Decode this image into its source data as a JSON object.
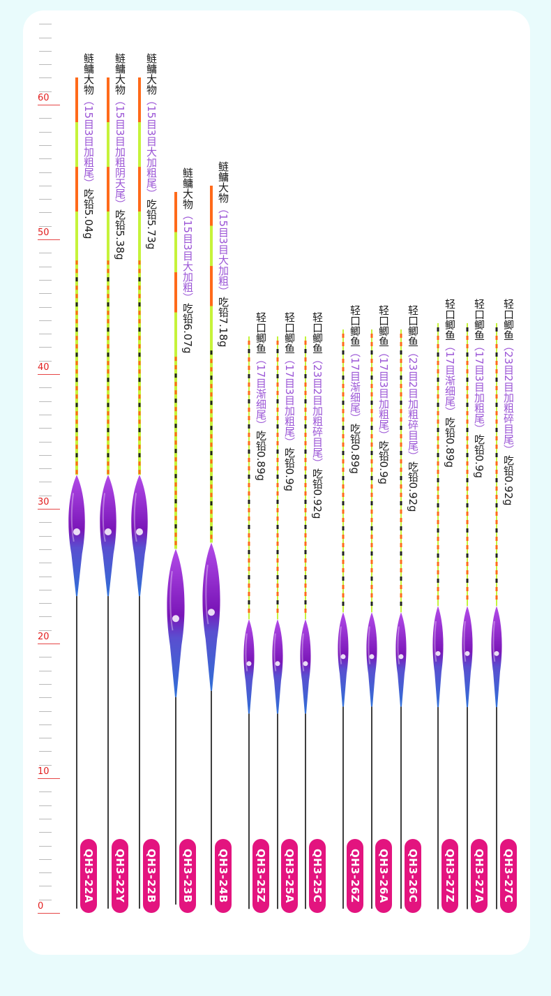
{
  "colors": {
    "background": "#e9fbfc",
    "card": "#ffffff",
    "ruler_label": "#e11d1d",
    "badge": "#e3147f",
    "spec_text": "#9b55d6",
    "tip_orange": "#ff6a1a",
    "tip_green": "#c6f33a",
    "body_purple": "#7a16b8",
    "body_blue": "#2f6fd6",
    "stem": "#2a2a2a"
  },
  "ruler": {
    "labels": [
      "0",
      "10",
      "20",
      "30",
      "40",
      "50",
      "60"
    ],
    "max": 66
  },
  "floats": [
    {
      "code": "QH3-22A",
      "name": "鲢鳙大物",
      "spec": "（15目3目加粗尾）",
      "weight": "吃铅5.04g",
      "top": 62,
      "body_top": 32.5,
      "body_bottom": 23.5,
      "stem_bottom": 0.3,
      "size": "large"
    },
    {
      "code": "QH3-22Y",
      "name": "鲢鳙大物",
      "spec": "（15目3目加粗阴天尾）",
      "weight": "吃铅5.38g",
      "top": 62,
      "body_top": 32.5,
      "body_bottom": 23.5,
      "stem_bottom": 0.3,
      "size": "large"
    },
    {
      "code": "QH3-22B",
      "name": "鲢鳙大物",
      "spec": "（15目3目大加粗尾）",
      "weight": "吃铅5.73g",
      "top": 62,
      "body_top": 32.5,
      "body_bottom": 23.5,
      "stem_bottom": 0.3,
      "size": "large"
    },
    {
      "code": "QH3-23B",
      "name": "鲢鳙大物",
      "spec": "（15目3目大加粗）",
      "weight": "吃铅6.07g",
      "top": 53.5,
      "body_top": 27,
      "body_bottom": 16,
      "stem_bottom": 0.6,
      "size": "xlarge"
    },
    {
      "code": "QH3-24B",
      "name": "鲢鳙大物",
      "spec": "（15目3目大加粗）",
      "weight": "吃铅7.18g",
      "top": 54,
      "body_top": 27.5,
      "body_bottom": 16.5,
      "stem_bottom": 0.6,
      "size": "xlarge"
    },
    {
      "code": "QH3-25Z",
      "name": "轻口鲫鱼",
      "spec": "（17目渐细尾）",
      "weight": "吃铅0.89g",
      "top": 42.8,
      "body_top": 21.8,
      "body_bottom": 14.8,
      "stem_bottom": 0.3,
      "size": "small"
    },
    {
      "code": "QH3-25A",
      "name": "轻口鲫鱼",
      "spec": "（17目3目加粗尾）",
      "weight": "吃铅0.9g",
      "top": 42.8,
      "body_top": 21.8,
      "body_bottom": 14.8,
      "stem_bottom": 0.3,
      "size": "small"
    },
    {
      "code": "QH3-25C",
      "name": "轻口鲫鱼",
      "spec": "（23目2目加粗碎目尾）",
      "weight": "吃铅0.92g",
      "top": 42.8,
      "body_top": 21.8,
      "body_bottom": 14.8,
      "stem_bottom": 0.3,
      "size": "small"
    },
    {
      "code": "QH3-26Z",
      "name": "轻口鲫鱼",
      "spec": "（17目渐细尾）",
      "weight": "吃铅0.89g",
      "top": 43.3,
      "body_top": 22.3,
      "body_bottom": 15.3,
      "stem_bottom": 0.3,
      "size": "small"
    },
    {
      "code": "QH3-26A",
      "name": "轻口鲫鱼",
      "spec": "（17目3目加粗尾）",
      "weight": "吃铅0.9g",
      "top": 43.3,
      "body_top": 22.3,
      "body_bottom": 15.3,
      "stem_bottom": 0.3,
      "size": "small"
    },
    {
      "code": "QH3-26C",
      "name": "轻口鲫鱼",
      "spec": "（23目2目加粗碎目尾）",
      "weight": "吃铅0.92g",
      "top": 43.3,
      "body_top": 22.3,
      "body_bottom": 15.3,
      "stem_bottom": 0.3,
      "size": "small"
    },
    {
      "code": "QH3-27Z",
      "name": "轻口鲫鱼",
      "spec": "（17目渐细尾）",
      "weight": "吃铅0.89g",
      "top": 43.8,
      "body_top": 22.8,
      "body_bottom": 15.3,
      "stem_bottom": 0.3,
      "size": "small"
    },
    {
      "code": "QH3-27A",
      "name": "轻口鲫鱼",
      "spec": "（17目3目加粗尾）",
      "weight": "吃铅0.9g",
      "top": 43.8,
      "body_top": 22.8,
      "body_bottom": 15.3,
      "stem_bottom": 0.3,
      "size": "small"
    },
    {
      "code": "QH3-27C",
      "name": "轻口鲫鱼",
      "spec": "（23目2目加粗碎目尾）",
      "weight": "吃铅0.92g",
      "top": 43.8,
      "body_top": 22.8,
      "body_bottom": 15.3,
      "stem_bottom": 0.3,
      "size": "small"
    }
  ]
}
